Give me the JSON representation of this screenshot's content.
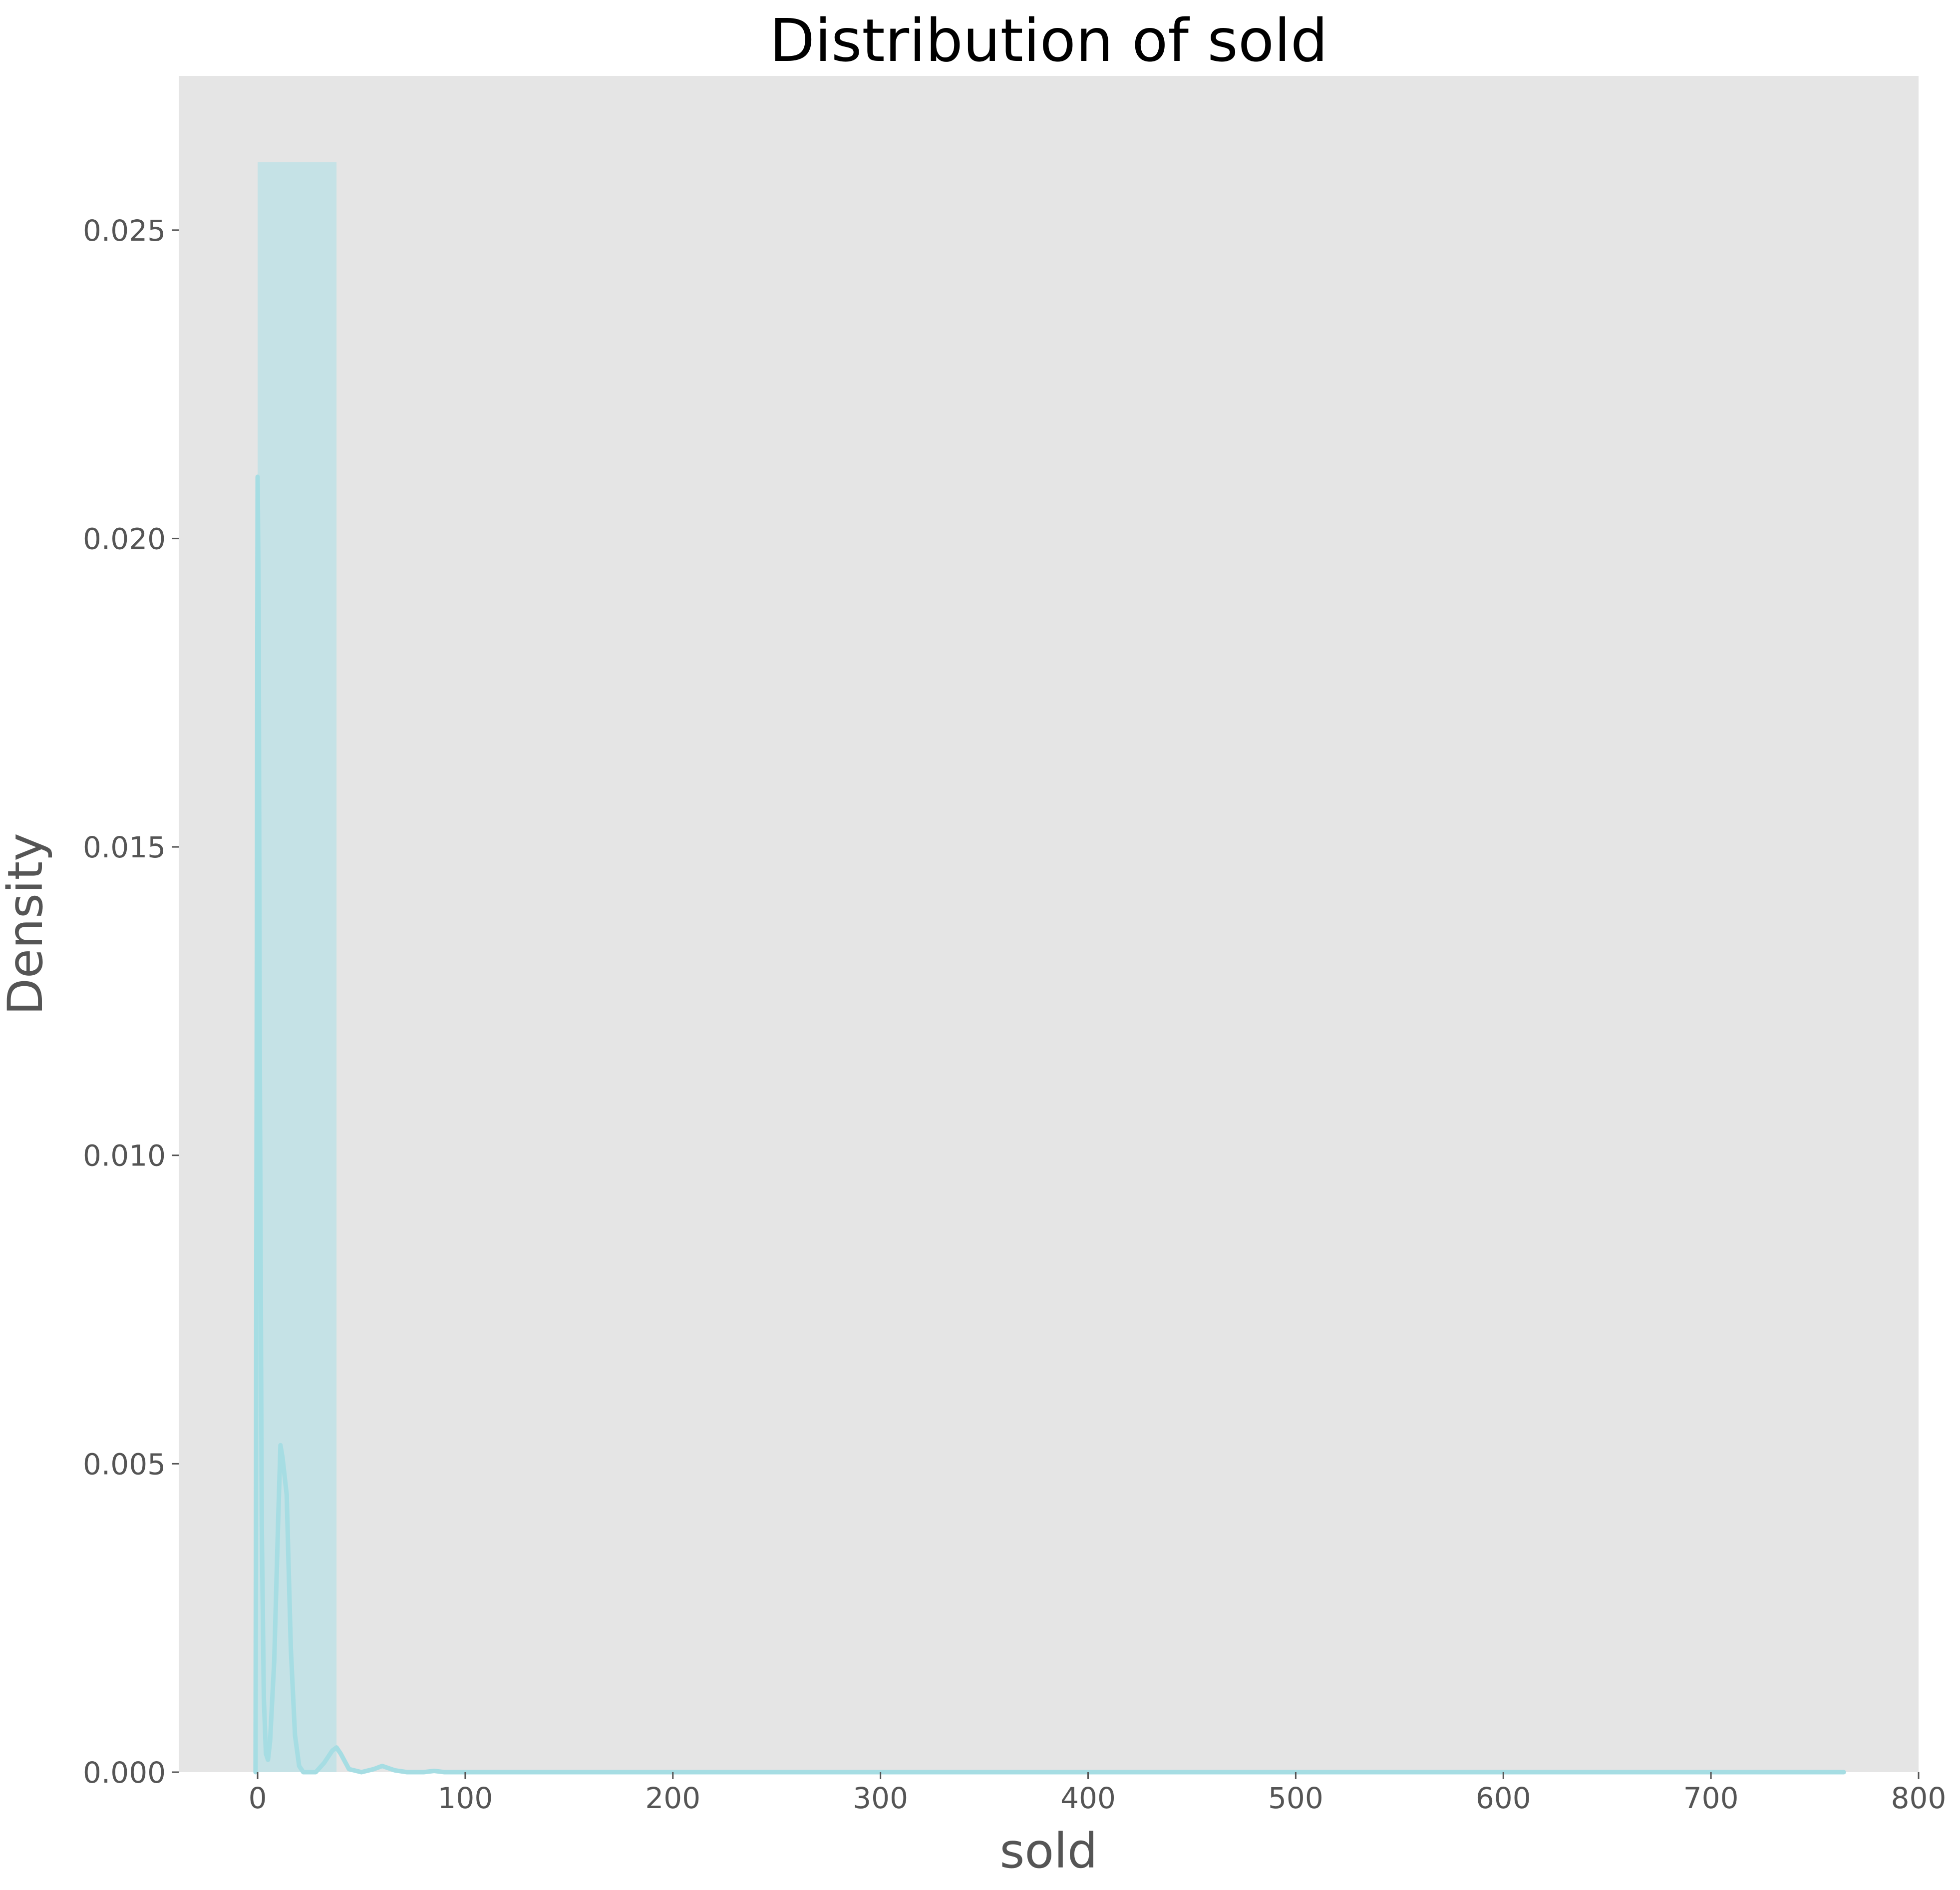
{
  "chart_data": {
    "type": "histogram",
    "title": "Distribution of sold",
    "xlabel": "sold",
    "ylabel": "Density",
    "xlim": [
      -38,
      800
    ],
    "ylim": [
      0,
      0.0275
    ],
    "xticks": [
      0,
      100,
      200,
      300,
      400,
      500,
      600,
      700,
      800
    ],
    "xtick_labels": [
      "0",
      "100",
      "200",
      "300",
      "400",
      "500",
      "600",
      "700",
      "800"
    ],
    "yticks": [
      0.0,
      0.005,
      0.01,
      0.015,
      0.02,
      0.025
    ],
    "ytick_labels": [
      "0.000",
      "0.005",
      "0.010",
      "0.015",
      "0.020",
      "0.025"
    ],
    "grid": false,
    "colors": {
      "plot_background": "#e5e5e5",
      "bar_fill": "#c5e2e6",
      "kde_line": "#a6dde3"
    },
    "bins": [
      {
        "x0": 0,
        "x1": 38,
        "density": 0.0261
      },
      {
        "x0": 38,
        "x1": 76,
        "density": 0.0
      },
      {
        "x0": 76,
        "x1": 114,
        "density": 0.0
      },
      {
        "x0": 114,
        "x1": 152,
        "density": 0.0
      },
      {
        "x0": 152,
        "x1": 190,
        "density": 0.0
      },
      {
        "x0": 190,
        "x1": 228,
        "density": 0.0
      },
      {
        "x0": 228,
        "x1": 266,
        "density": 0.0
      },
      {
        "x0": 266,
        "x1": 304,
        "density": 0.0
      },
      {
        "x0": 304,
        "x1": 342,
        "density": 0.0
      },
      {
        "x0": 342,
        "x1": 380,
        "density": 0.0
      },
      {
        "x0": 380,
        "x1": 418,
        "density": 0.0
      },
      {
        "x0": 418,
        "x1": 456,
        "density": 0.0
      },
      {
        "x0": 456,
        "x1": 494,
        "density": 0.0
      },
      {
        "x0": 494,
        "x1": 532,
        "density": 0.0
      },
      {
        "x0": 532,
        "x1": 570,
        "density": 0.0
      },
      {
        "x0": 570,
        "x1": 608,
        "density": 0.0
      },
      {
        "x0": 608,
        "x1": 646,
        "density": 0.0
      },
      {
        "x0": 646,
        "x1": 684,
        "density": 0.0
      },
      {
        "x0": 684,
        "x1": 722,
        "density": 0.0
      },
      {
        "x0": 722,
        "x1": 764,
        "density": 0.0
      }
    ],
    "kde": {
      "x": [
        -1,
        0,
        0.5,
        1,
        2,
        3,
        4,
        5,
        6,
        8,
        10,
        11,
        12,
        14,
        16,
        18,
        20,
        22,
        24,
        28,
        32,
        36,
        38,
        40,
        44,
        50,
        56,
        60,
        66,
        72,
        80,
        85,
        90,
        100,
        764
      ],
      "y": [
        0.0,
        0.021,
        0.019,
        0.012,
        0.004,
        0.0012,
        0.0003,
        0.0002,
        0.0005,
        0.0018,
        0.0042,
        0.0053,
        0.0051,
        0.0045,
        0.002,
        0.0006,
        0.0001,
        0.0,
        0.0,
        0.0,
        0.00015,
        0.00035,
        0.0004,
        0.0003,
        5e-05,
        0.0,
        5e-05,
        0.0001,
        3e-05,
        0.0,
        0.0,
        2e-05,
        0.0,
        0.0,
        0.0
      ]
    }
  }
}
